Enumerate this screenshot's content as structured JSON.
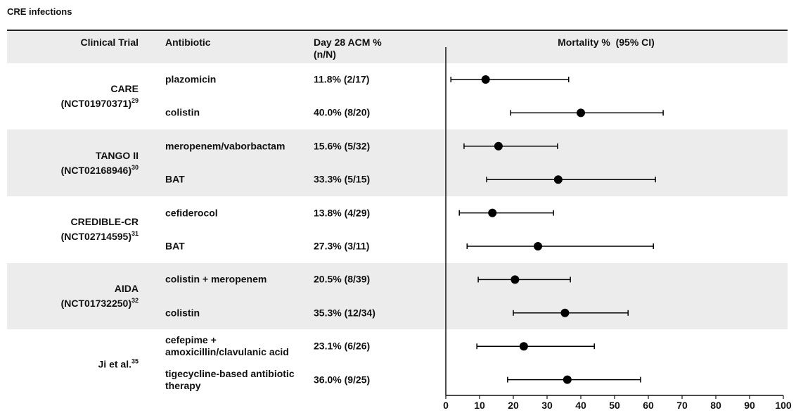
{
  "chart_data": {
    "type": "forest",
    "title": "CRE infections",
    "columns": [
      "Clinical Trial",
      "Antibiotic",
      "Day 28 ACM % (n/N)",
      "Mortality %  (95% CI)"
    ],
    "xlim": [
      0,
      100
    ],
    "xticks": [
      0,
      10,
      20,
      30,
      40,
      50,
      60,
      70,
      80,
      90,
      100
    ],
    "color": "#000000",
    "groups": [
      {
        "name": "CARE",
        "registry": "(NCT01970371)",
        "ref": "29",
        "antibiotics": [
          "plazomicin",
          "colistin"
        ],
        "values": [
          11.8,
          40.0
        ],
        "value_labels": [
          "11.8% (2/17)",
          "40.0% (8/20)"
        ],
        "ci_low": [
          1.5,
          19.2
        ],
        "ci_high": [
          36.4,
          64.4
        ]
      },
      {
        "name": "TANGO II",
        "registry": "(NCT02168946)",
        "ref": "30",
        "antibiotics": [
          "meropenem/vaborbactam",
          "BAT"
        ],
        "values": [
          15.6,
          33.3
        ],
        "value_labels": [
          "15.6% (5/32)",
          "33.3% (5/15)"
        ],
        "ci_low": [
          5.4,
          12.1
        ],
        "ci_high": [
          33.1,
          62.1
        ]
      },
      {
        "name": "CREDIBLE-CR",
        "registry": "(NCT02714595)",
        "ref": "31",
        "antibiotics": [
          "cefiderocol",
          "BAT"
        ],
        "values": [
          13.8,
          27.3
        ],
        "value_labels": [
          "13.8% (4/29)",
          "27.3% (3/11)"
        ],
        "ci_low": [
          4.0,
          6.3
        ],
        "ci_high": [
          31.9,
          61.5
        ]
      },
      {
        "name": "AIDA",
        "registry": "(NCT01732250)",
        "ref": "32",
        "antibiotics": [
          "colistin + meropenem",
          "colistin"
        ],
        "values": [
          20.5,
          35.3
        ],
        "value_labels": [
          "20.5% (8/39)",
          "35.3% (12/34)"
        ],
        "ci_low": [
          9.6,
          20.0
        ],
        "ci_high": [
          36.9,
          54.0
        ]
      },
      {
        "name": "Ji et al.",
        "ref": "35",
        "antibiotics": [
          "cefepime + amoxicillin/clavulanic acid",
          "tigecycline-based antibiotic therapy"
        ],
        "values": [
          23.1,
          36.0
        ],
        "value_labels": [
          "23.1% (6/26)",
          "36.0% (9/25)"
        ],
        "ci_low": [
          9.2,
          18.3
        ],
        "ci_high": [
          44.0,
          57.7
        ]
      }
    ]
  }
}
